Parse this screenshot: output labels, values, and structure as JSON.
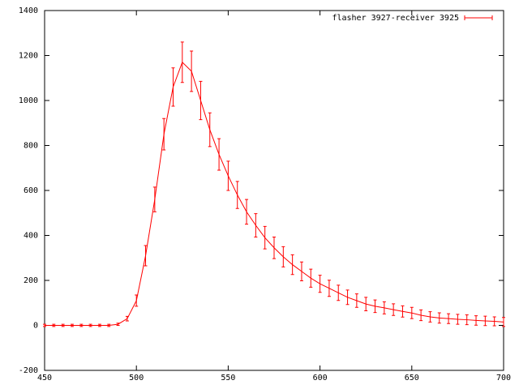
{
  "chart_data": {
    "type": "errorbar",
    "x": [
      450,
      455,
      460,
      465,
      470,
      475,
      480,
      485,
      490,
      495,
      500,
      505,
      510,
      515,
      520,
      525,
      530,
      535,
      540,
      545,
      550,
      555,
      560,
      565,
      570,
      575,
      580,
      585,
      590,
      595,
      600,
      605,
      610,
      615,
      620,
      625,
      630,
      635,
      640,
      645,
      650,
      655,
      660,
      665,
      670,
      675,
      680,
      685,
      690,
      695,
      700
    ],
    "series": [
      {
        "name": "flasher 3927-receiver 3925",
        "color": "#ff0000",
        "values": [
          0,
          0,
          0,
          0,
          0,
          0,
          0,
          0,
          5,
          30,
          110,
          310,
          560,
          850,
          1060,
          1170,
          1130,
          1000,
          870,
          760,
          665,
          580,
          505,
          445,
          390,
          345,
          305,
          270,
          240,
          210,
          185,
          165,
          145,
          125,
          110,
          95,
          85,
          78,
          70,
          62,
          55,
          45,
          38,
          33,
          30,
          27,
          25,
          22,
          20,
          18,
          15
        ],
        "errors": [
          5,
          5,
          5,
          5,
          5,
          5,
          5,
          5,
          5,
          10,
          25,
          45,
          55,
          70,
          85,
          90,
          90,
          85,
          75,
          70,
          65,
          60,
          55,
          52,
          50,
          48,
          45,
          44,
          42,
          40,
          38,
          36,
          34,
          32,
          30,
          30,
          28,
          27,
          26,
          25,
          25,
          24,
          23,
          23,
          22,
          22,
          22,
          21,
          21,
          20,
          20
        ]
      }
    ],
    "xlim": [
      450,
      700
    ],
    "xticks": [
      450,
      500,
      550,
      600,
      650,
      700
    ],
    "ylim": [
      -200,
      1400
    ],
    "yticks": [
      -200,
      0,
      200,
      400,
      600,
      800,
      1000,
      1200,
      1400
    ],
    "legend": "top-right"
  }
}
